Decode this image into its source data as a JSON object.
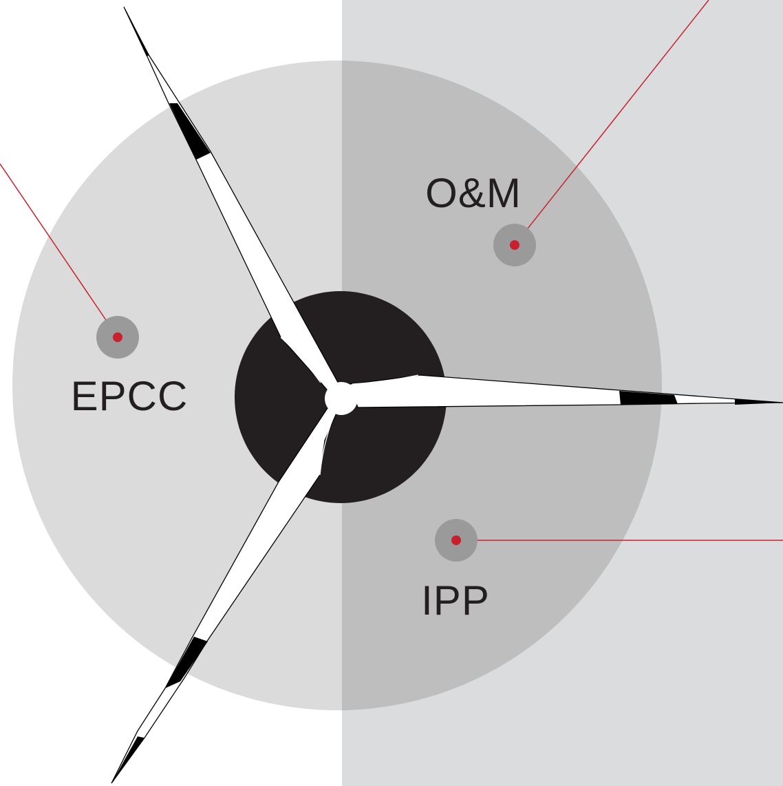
{
  "segments": {
    "epcc": {
      "label": "EPCC"
    },
    "om": {
      "label": "O&M"
    },
    "ipp": {
      "label": "IPP"
    }
  },
  "colors": {
    "right_panel": "#dbdcdd",
    "disc_left": "#dbdbdb",
    "disc_right": "#bebebe",
    "marker_halo": "#9a9a9a",
    "marker_dot": "#c8202f",
    "leader_line": "#c8202f",
    "hub": "#231f20",
    "blade_outline": "#000000",
    "blade_fill": "#ffffff"
  },
  "icons": {
    "turbine": "wind-turbine-icon"
  }
}
